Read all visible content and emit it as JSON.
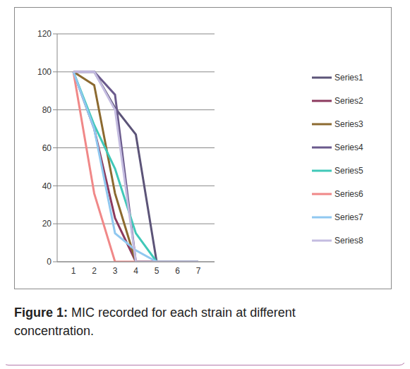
{
  "chart_data": {
    "type": "line",
    "categories": [
      1,
      2,
      3,
      4,
      5,
      6,
      7
    ],
    "ylim": [
      0,
      120
    ],
    "yticks": [
      0,
      20,
      40,
      60,
      80,
      100,
      120
    ],
    "grid": true,
    "legend": "right",
    "series": [
      {
        "name": "Series1",
        "color": "#5c5478",
        "values": [
          100,
          100,
          81,
          67,
          0,
          0,
          0
        ]
      },
      {
        "name": "Series2",
        "color": "#8c3a5e",
        "values": [
          100,
          70,
          23,
          0,
          0,
          0,
          0
        ]
      },
      {
        "name": "Series3",
        "color": "#8c6a30",
        "values": [
          100,
          93,
          36,
          0,
          0,
          0,
          0
        ]
      },
      {
        "name": "Series4",
        "color": "#6a5a8c",
        "values": [
          100,
          100,
          88,
          0,
          0,
          0,
          0
        ]
      },
      {
        "name": "Series5",
        "color": "#40c8b8",
        "values": [
          100,
          72,
          49,
          15,
          0,
          0,
          0
        ]
      },
      {
        "name": "Series6",
        "color": "#f08888",
        "values": [
          100,
          36,
          0,
          0,
          0,
          0,
          0
        ]
      },
      {
        "name": "Series7",
        "color": "#90c8f0",
        "values": [
          100,
          70,
          15,
          6,
          0,
          0,
          0
        ]
      },
      {
        "name": "Series8",
        "color": "#c4bce0",
        "values": [
          100,
          100,
          80,
          0,
          0,
          0,
          0
        ]
      }
    ],
    "caption": {
      "label": "Figure 1:",
      "text": "MIC recorded for each strain at different concentration."
    }
  }
}
